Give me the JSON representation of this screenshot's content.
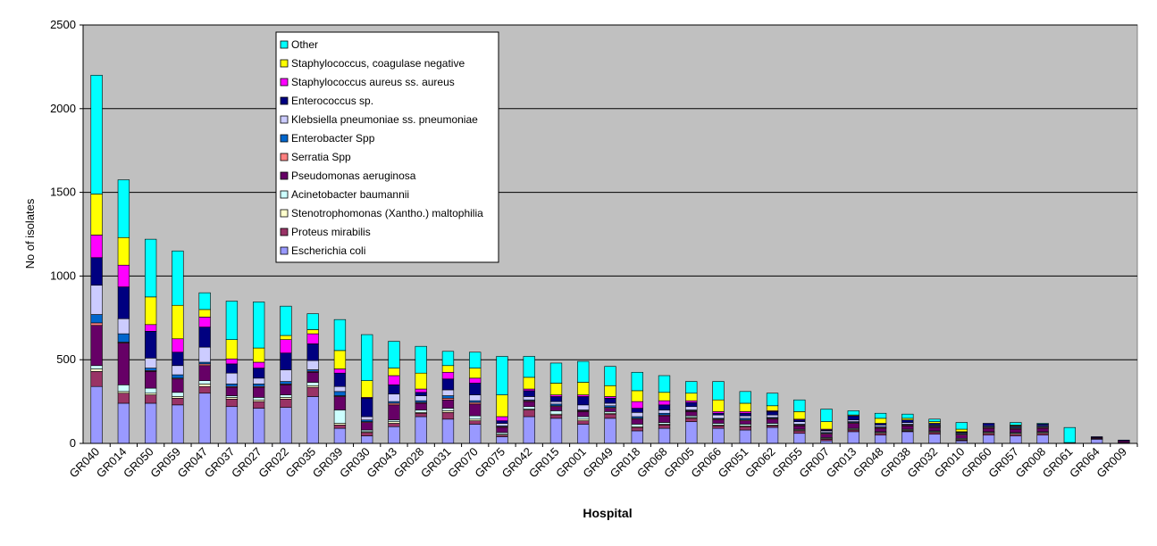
{
  "chart_data": {
    "type": "bar",
    "stacked": true,
    "xlabel": "Hospital",
    "ylabel": "No of isolates",
    "ylim": [
      0,
      2500
    ],
    "yticks": [
      0,
      500,
      1000,
      1500,
      2000,
      2500
    ],
    "grid": true,
    "legend_position": "top-left",
    "plot_background": "#c0c0c0",
    "categories": [
      "GR040",
      "GR014",
      "GR050",
      "GR059",
      "GR047",
      "GR037",
      "GR027",
      "GR022",
      "GR035",
      "GR039",
      "GR030",
      "GR043",
      "GR028",
      "GR031",
      "GR070",
      "GR075",
      "GR042",
      "GR015",
      "GR001",
      "GR049",
      "GR018",
      "GR068",
      "GR005",
      "GR066",
      "GR051",
      "GR062",
      "GR055",
      "GR007",
      "GR013",
      "GR048",
      "GR038",
      "GR032",
      "GR010",
      "GR060",
      "GR057",
      "GR008",
      "GR061",
      "GR064",
      "GR009"
    ],
    "series": [
      {
        "name": "Escherichia coli",
        "color": "#9999ff",
        "values": [
          340,
          240,
          240,
          230,
          300,
          220,
          210,
          215,
          280,
          90,
          45,
          100,
          160,
          145,
          115,
          40,
          160,
          150,
          115,
          150,
          75,
          90,
          130,
          90,
          80,
          95,
          60,
          15,
          70,
          50,
          70,
          55,
          15,
          50,
          45,
          50,
          5,
          25,
          5
        ]
      },
      {
        "name": "Proteus mirabilis",
        "color": "#993366",
        "values": [
          90,
          60,
          50,
          40,
          40,
          45,
          40,
          50,
          55,
          20,
          20,
          20,
          20,
          40,
          20,
          10,
          40,
          20,
          20,
          25,
          20,
          20,
          20,
          15,
          20,
          10,
          15,
          10,
          10,
          10,
          5,
          10,
          5,
          10,
          10,
          10,
          0,
          5,
          0
        ]
      },
      {
        "name": "Stenotrophomonas (Xantho.) maltophilia",
        "color": "#ffffcc",
        "values": [
          15,
          10,
          10,
          10,
          15,
          10,
          10,
          10,
          10,
          10,
          5,
          10,
          5,
          10,
          10,
          5,
          5,
          5,
          10,
          5,
          5,
          5,
          5,
          5,
          5,
          5,
          5,
          5,
          5,
          5,
          5,
          5,
          5,
          5,
          5,
          5,
          0,
          0,
          0
        ]
      },
      {
        "name": "Acinetobacter baumannii",
        "color": "#ccffff",
        "values": [
          20,
          40,
          30,
          25,
          20,
          10,
          15,
          15,
          20,
          80,
          10,
          10,
          15,
          15,
          20,
          10,
          15,
          20,
          15,
          10,
          15,
          10,
          10,
          10,
          10,
          10,
          5,
          5,
          5,
          5,
          5,
          5,
          5,
          5,
          5,
          5,
          0,
          0,
          0
        ]
      },
      {
        "name": "Pseudomonas aeruginosa",
        "color": "#660066",
        "values": [
          240,
          250,
          100,
          80,
          90,
          50,
          60,
          60,
          60,
          80,
          45,
          90,
          40,
          50,
          70,
          30,
          30,
          25,
          30,
          20,
          30,
          40,
          25,
          20,
          20,
          25,
          20,
          20,
          30,
          20,
          20,
          20,
          20,
          20,
          20,
          20,
          0,
          5,
          10
        ]
      },
      {
        "name": "Serratia Spp",
        "color": "#ff8080",
        "values": [
          15,
          5,
          5,
          5,
          10,
          5,
          5,
          5,
          5,
          5,
          5,
          10,
          5,
          10,
          10,
          5,
          5,
          5,
          5,
          5,
          5,
          5,
          5,
          5,
          5,
          5,
          5,
          5,
          5,
          5,
          5,
          5,
          5,
          5,
          5,
          5,
          0,
          0,
          0
        ]
      },
      {
        "name": "Enterobacter Spp",
        "color": "#0066cc",
        "values": [
          50,
          50,
          15,
          20,
          10,
          15,
          15,
          15,
          10,
          25,
          10,
          10,
          10,
          15,
          10,
          5,
          5,
          10,
          5,
          10,
          10,
          10,
          5,
          5,
          10,
          5,
          5,
          5,
          5,
          5,
          5,
          5,
          5,
          5,
          5,
          5,
          0,
          0,
          0
        ]
      },
      {
        "name": "Klebsiella pneumoniae ss. pneumoniae",
        "color": "#ccccff",
        "values": [
          175,
          90,
          60,
          55,
          90,
          65,
          35,
          70,
          55,
          30,
          20,
          45,
          30,
          35,
          35,
          15,
          20,
          15,
          30,
          15,
          25,
          20,
          20,
          20,
          15,
          15,
          15,
          10,
          10,
          10,
          10,
          5,
          5,
          5,
          5,
          5,
          0,
          0,
          0
        ]
      },
      {
        "name": "Enterococcus sp.",
        "color": "#000080",
        "values": [
          165,
          190,
          160,
          80,
          120,
          55,
          60,
          100,
          100,
          80,
          110,
          55,
          20,
          65,
          70,
          15,
          35,
          30,
          50,
          30,
          25,
          30,
          25,
          10,
          15,
          20,
          10,
          5,
          25,
          10,
          15,
          10,
          5,
          15,
          5,
          10,
          0,
          5,
          5
        ]
      },
      {
        "name": "Staphylococcus aureus ss. aureus",
        "color": "#ff00ff",
        "values": [
          135,
          130,
          40,
          80,
          60,
          30,
          35,
          80,
          60,
          25,
          5,
          55,
          20,
          40,
          30,
          25,
          10,
          10,
          10,
          10,
          40,
          25,
          10,
          10,
          10,
          5,
          5,
          5,
          0,
          0,
          0,
          0,
          0,
          0,
          0,
          0,
          0,
          0,
          0
        ]
      },
      {
        "name": "Staphylococcus, coagulase negative",
        "color": "#ffff00",
        "values": [
          245,
          165,
          165,
          200,
          45,
          115,
          85,
          25,
          25,
          110,
          100,
          45,
          95,
          40,
          60,
          130,
          70,
          70,
          75,
          65,
          65,
          50,
          45,
          70,
          50,
          30,
          45,
          45,
          5,
          30,
          10,
          10,
          15,
          0,
          5,
          0,
          0,
          0,
          0
        ]
      },
      {
        "name": "Other",
        "color": "#00ffff",
        "values": [
          710,
          345,
          345,
          325,
          100,
          230,
          275,
          175,
          95,
          185,
          275,
          160,
          160,
          85,
          95,
          230,
          125,
          120,
          125,
          115,
          110,
          100,
          70,
          110,
          70,
          75,
          70,
          75,
          25,
          30,
          25,
          15,
          40,
          0,
          15,
          5,
          90,
          0,
          0
        ]
      }
    ]
  }
}
